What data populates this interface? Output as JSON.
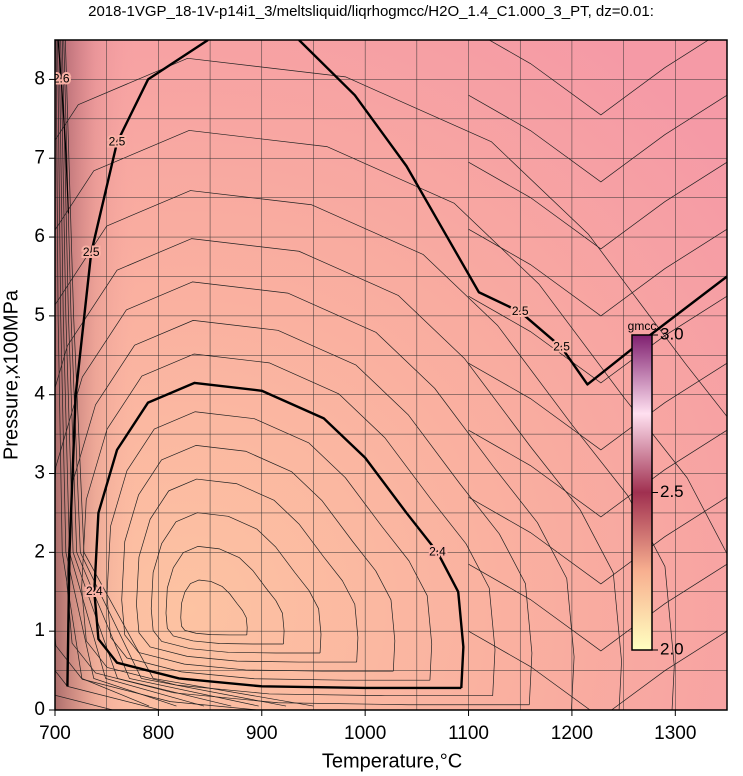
{
  "chart_data": {
    "type": "contour",
    "title": "2018-1VGP_18-1V-p14i1_3/meltsliquid/liqrhogmcc/H2O_1.4_C1.000_3_PT, dz=0.01:",
    "x_label": "Temperature,°C",
    "y_label": "Pressure,x100MPa",
    "xlim": [
      700,
      1350
    ],
    "ylim": [
      0,
      8.5
    ],
    "xticks": [
      700,
      800,
      900,
      1000,
      1100,
      1200,
      1300
    ],
    "yticks": [
      0,
      1,
      2,
      3,
      4,
      5,
      6,
      7,
      8
    ],
    "grid": true,
    "contours": [
      {
        "level": 2.5,
        "x": [
          712,
          714,
          720,
          735,
          760,
          790,
          848,
          null,
          936,
          990,
          1040,
          1075,
          1110,
          1150,
          1190,
          1215,
          1260,
          1300,
          1350
        ],
        "y": [
          0.3,
          2,
          4,
          5.8,
          7.2,
          8.0,
          8.5,
          null,
          8.5,
          7.8,
          6.9,
          6.1,
          5.3,
          5.05,
          4.6,
          4.13,
          4.6,
          5.0,
          5.5
        ]
      },
      {
        "level": 2.4,
        "x": [
          1093,
          1095,
          1090,
          1070,
          1040,
          1000,
          960,
          900,
          835,
          790,
          760,
          742,
          738,
          742,
          760,
          820,
          900,
          1000,
          1093
        ],
        "y": [
          0.28,
          0.8,
          1.5,
          2.0,
          2.5,
          3.2,
          3.7,
          4.05,
          4.15,
          3.9,
          3.3,
          2.5,
          1.5,
          0.9,
          0.6,
          0.4,
          0.3,
          0.28,
          0.28
        ]
      },
      {
        "level": 2.6,
        "x": [
          703,
          706,
          710,
          713
        ],
        "y": [
          8.5,
          8.0,
          7.2,
          6.3
        ]
      }
    ],
    "colorbar": {
      "label": "gmcc",
      "zlim": [
        2,
        3
      ],
      "ticks": [
        {
          "value": 2,
          "label": "2.0"
        },
        2.5,
        {
          "value": 3,
          "label": "3.0"
        }
      ],
      "colors": [
        "#ffffc0",
        "#f8b090",
        "#a03050",
        "#ffe0f0",
        "#802070"
      ]
    }
  }
}
